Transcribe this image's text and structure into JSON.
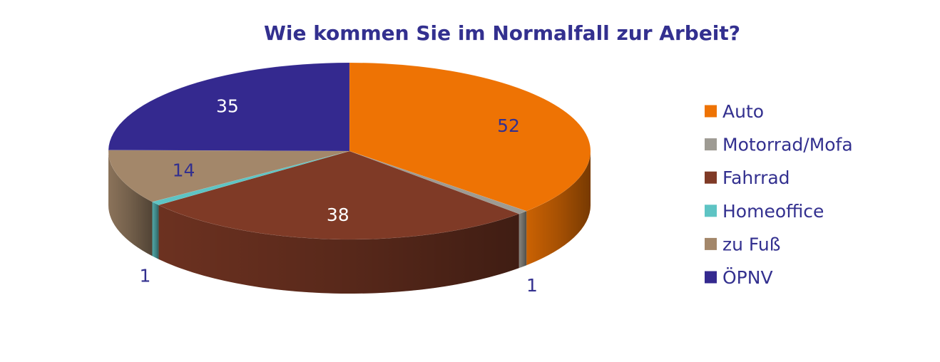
{
  "chart_data": {
    "type": "pie",
    "title": "Wie kommen Sie im Normalfall zur Arbeit?",
    "legend_position": "right",
    "three_d": true,
    "categories": [
      "Auto",
      "Motorrad/Mofa",
      "Fahrrad",
      "Homeoffice",
      "zu Fuß",
      "ÖPNV"
    ],
    "values": [
      52,
      1,
      38,
      1,
      14,
      35
    ],
    "colors": [
      "#ee7304",
      "#9e9b93",
      "#7f3a26",
      "#5ec4c4",
      "#a3876a",
      "#34298f"
    ],
    "label_colors": [
      "#33308f",
      "#33308f",
      "#ffffff",
      "#33308f",
      "#33308f",
      "#ffffff"
    ]
  }
}
